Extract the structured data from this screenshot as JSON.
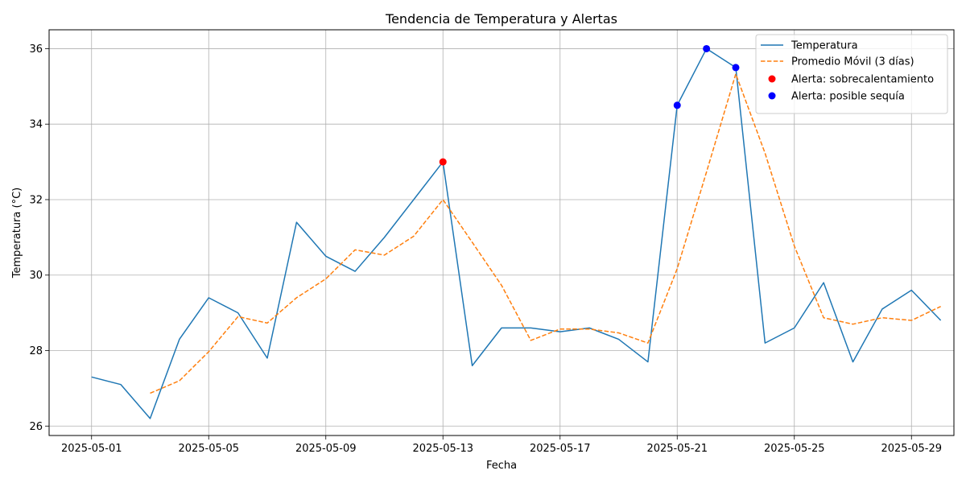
{
  "chart_data": {
    "type": "line",
    "title": "Tendencia de Temperatura y Alertas",
    "xlabel": "Fecha",
    "ylabel": "Temperatura (°C)",
    "x_start": "2025-05-01",
    "x": [
      "2025-05-01",
      "2025-05-02",
      "2025-05-03",
      "2025-05-04",
      "2025-05-05",
      "2025-05-06",
      "2025-05-07",
      "2025-05-08",
      "2025-05-09",
      "2025-05-10",
      "2025-05-11",
      "2025-05-12",
      "2025-05-13",
      "2025-05-14",
      "2025-05-15",
      "2025-05-16",
      "2025-05-17",
      "2025-05-18",
      "2025-05-19",
      "2025-05-20",
      "2025-05-21",
      "2025-05-22",
      "2025-05-23",
      "2025-05-24",
      "2025-05-25",
      "2025-05-26",
      "2025-05-27",
      "2025-05-28",
      "2025-05-29",
      "2025-05-30"
    ],
    "x_ticks": [
      "2025-05-01",
      "2025-05-05",
      "2025-05-09",
      "2025-05-13",
      "2025-05-17",
      "2025-05-21",
      "2025-05-25",
      "2025-05-29"
    ],
    "xlim": [
      "2025-04-29.55",
      "2025-05-30.45"
    ],
    "y_ticks": [
      26,
      28,
      30,
      32,
      34,
      36
    ],
    "ylim": [
      25.75,
      36.5
    ],
    "grid": true,
    "legend_position": "top-right",
    "series": [
      {
        "name": "Temperatura",
        "style": "solid",
        "color": "#1f77b4",
        "values": [
          27.3,
          27.1,
          26.2,
          28.3,
          29.4,
          29.0,
          27.8,
          31.4,
          30.5,
          30.1,
          31.0,
          32.0,
          33.0,
          27.6,
          28.6,
          28.6,
          28.5,
          28.6,
          28.3,
          27.7,
          34.5,
          36.0,
          35.5,
          28.2,
          28.6,
          29.8,
          27.7,
          29.1,
          29.6,
          28.8
        ]
      },
      {
        "name": "Promedio Móvil (3 días)",
        "style": "dashed",
        "color": "#ff7f0e",
        "values": [
          null,
          null,
          26.87,
          27.2,
          27.97,
          28.9,
          28.73,
          29.4,
          29.9,
          30.67,
          30.53,
          31.03,
          32.0,
          30.87,
          29.73,
          28.27,
          28.57,
          28.57,
          28.47,
          28.2,
          30.17,
          32.73,
          35.33,
          33.23,
          30.77,
          28.87,
          28.7,
          28.87,
          28.8,
          29.17
        ]
      }
    ],
    "alerts": [
      {
        "name": "Alerta: sobrecalentamiento",
        "color": "#ff0000",
        "points": [
          {
            "x": "2025-05-13",
            "y": 33.0
          }
        ]
      },
      {
        "name": "Alerta: posible sequía",
        "color": "#0000ff",
        "points": [
          {
            "x": "2025-05-21",
            "y": 34.5
          },
          {
            "x": "2025-05-22",
            "y": 36.0
          },
          {
            "x": "2025-05-23",
            "y": 35.5
          }
        ]
      }
    ]
  }
}
